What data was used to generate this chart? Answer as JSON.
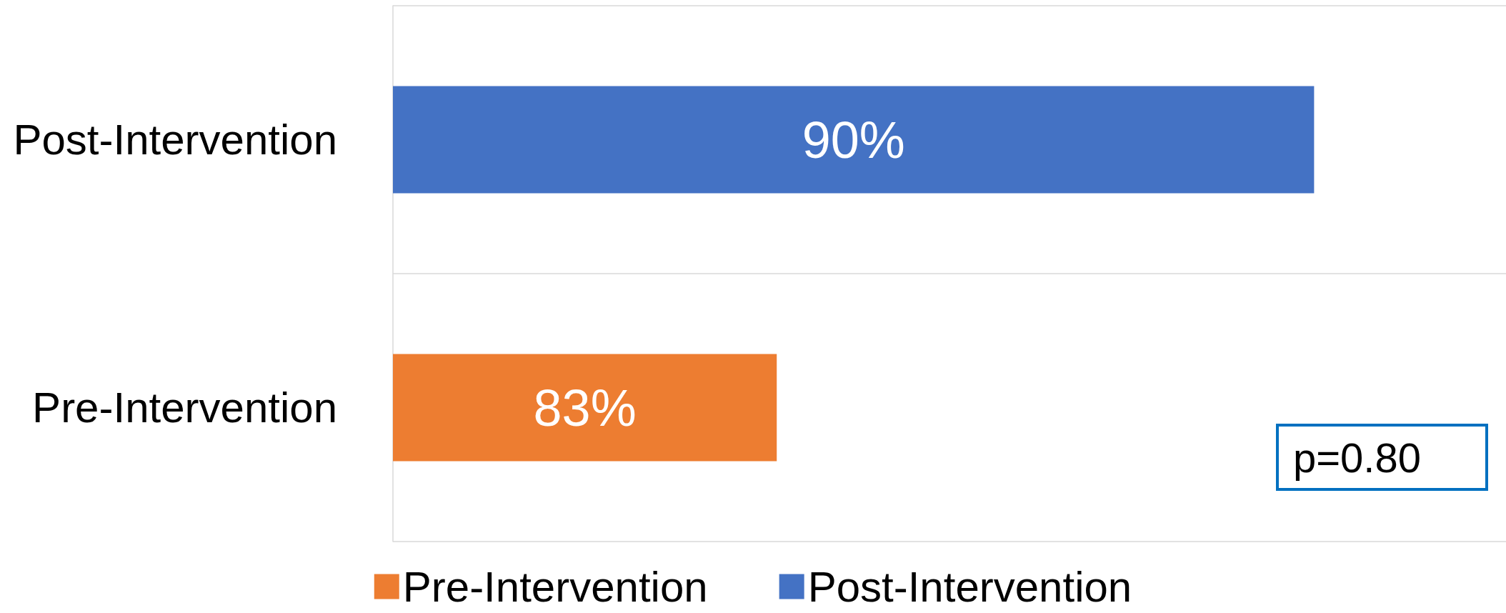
{
  "chart_data": {
    "type": "bar",
    "orientation": "horizontal",
    "categories": [
      "Post-Intervention",
      "Pre-Intervention"
    ],
    "series": [
      {
        "name": "Pre-Intervention",
        "color": "#ed7d31",
        "values": [
          null,
          83
        ],
        "value_labels": [
          null,
          "83%"
        ]
      },
      {
        "name": "Post-Intervention",
        "color": "#4472c4",
        "values": [
          90,
          null
        ],
        "value_labels": [
          "90%",
          null
        ]
      }
    ],
    "xlim": [
      78,
      92.5
    ],
    "tick_labels": "y",
    "grid": "y",
    "legend": "bottom",
    "annotations": [
      "p=0.80"
    ]
  }
}
